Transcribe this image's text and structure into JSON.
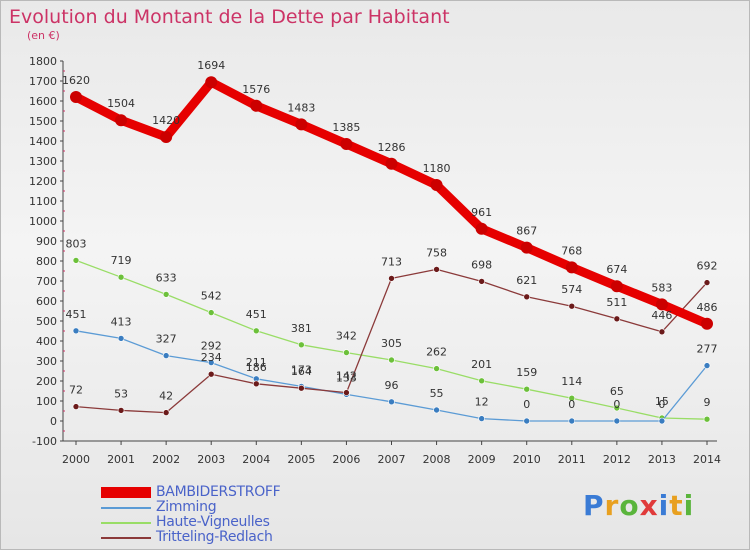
{
  "title": "Evolution du Montant de la Dette par Habitant",
  "subtitle": "(en €)",
  "logo": {
    "letters": [
      "P",
      "r",
      "o",
      "x",
      "i",
      "t",
      "i"
    ],
    "colors": [
      "#3a7bd5",
      "#e8a020",
      "#5ab53c",
      "#e03a3a",
      "#3a7bd5",
      "#e8a020",
      "#5ab53c"
    ]
  },
  "chart_data": {
    "type": "line",
    "title": "Evolution du Montant de la Dette par Habitant",
    "ylabel": "(en €)",
    "x": [
      "2000",
      "2001",
      "2002",
      "2003",
      "2004",
      "2005",
      "2006",
      "2007",
      "2008",
      "2009",
      "2010",
      "2011",
      "2012",
      "2013",
      "2014"
    ],
    "ylim": [
      -100,
      1800
    ],
    "yticks": [
      -100,
      0,
      100,
      200,
      300,
      400,
      500,
      600,
      700,
      800,
      900,
      1000,
      1100,
      1200,
      1300,
      1400,
      1500,
      1600,
      1700,
      1800
    ],
    "grid": false,
    "legend_position": "bottom-left",
    "series": [
      {
        "name": "BAMBIDERSTROFF",
        "color": "#e60000",
        "marker": "#cc0000",
        "values": [
          1620,
          1504,
          1420,
          1694,
          1576,
          1483,
          1385,
          1286,
          1180,
          961,
          867,
          768,
          674,
          583,
          486
        ],
        "labels": [
          "1620",
          "1504",
          "1420",
          "1694",
          "1576",
          "1483",
          "1385",
          "1286",
          "1180",
          "961",
          "867",
          "768",
          "674",
          "583",
          "486"
        ]
      },
      {
        "name": "Zimming",
        "color": "#5b9bd5",
        "marker": "#3a7dc0",
        "values": [
          451,
          413,
          327,
          292,
          211,
          173,
          133,
          96,
          55,
          12,
          0,
          0,
          0,
          0,
          277
        ],
        "labels": [
          "451",
          "413",
          "327",
          "292",
          "211",
          "173",
          "133",
          "96",
          "55",
          "12",
          "0",
          "0",
          "0",
          "0",
          "277"
        ]
      },
      {
        "name": "Haute-Vigneulles",
        "color": "#99dd66",
        "marker": "#6cc03a",
        "values": [
          803,
          719,
          633,
          542,
          451,
          381,
          342,
          305,
          262,
          201,
          159,
          114,
          65,
          15,
          9
        ],
        "labels": [
          "803",
          "719",
          "633",
          "542",
          "451",
          "381",
          "342",
          "305",
          "262",
          "201",
          "159",
          "114",
          "65",
          "15",
          "9"
        ]
      },
      {
        "name": "Tritteling-Redlach",
        "color": "#8b3a3a",
        "marker": "#6b1a1a",
        "values": [
          72,
          53,
          42,
          234,
          186,
          164,
          142,
          713,
          758,
          698,
          621,
          574,
          511,
          446,
          692
        ],
        "labels": [
          "72",
          "53",
          "42",
          "234",
          "186",
          "164",
          "142",
          "713",
          "758",
          "698",
          "621",
          "574",
          "511",
          "446",
          "692"
        ]
      }
    ]
  }
}
